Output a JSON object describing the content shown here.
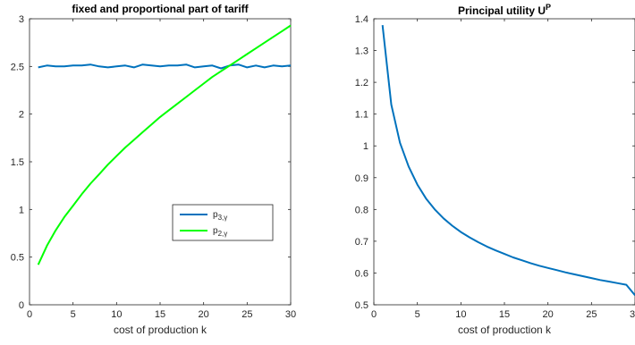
{
  "chart_data": [
    {
      "type": "line",
      "title": "fixed and proportional part of tariff",
      "xlabel": "cost of production k",
      "ylabel": "",
      "xlim": [
        0,
        30
      ],
      "ylim": [
        0,
        3
      ],
      "xticks": [
        "0",
        "5",
        "10",
        "15",
        "20",
        "25",
        "30"
      ],
      "yticks": [
        "0",
        "0.5",
        "1",
        "1.5",
        "2",
        "2.5",
        "3"
      ],
      "legend": {
        "position": "lower-right"
      },
      "series": [
        {
          "name": "p3,γ",
          "label_main": "p",
          "label_sub": "3,γ",
          "color": "#0072bd",
          "x": [
            1,
            2,
            3,
            4,
            5,
            6,
            7,
            8,
            9,
            10,
            11,
            12,
            13,
            14,
            15,
            16,
            17,
            18,
            19,
            20,
            21,
            22,
            23,
            24,
            25,
            26,
            27,
            28,
            29,
            30
          ],
          "y": [
            2.49,
            2.51,
            2.5,
            2.5,
            2.51,
            2.51,
            2.52,
            2.5,
            2.49,
            2.5,
            2.51,
            2.49,
            2.52,
            2.51,
            2.5,
            2.51,
            2.51,
            2.52,
            2.49,
            2.5,
            2.51,
            2.48,
            2.51,
            2.52,
            2.49,
            2.51,
            2.49,
            2.51,
            2.5,
            2.51
          ]
        },
        {
          "name": "p2,γ",
          "label_main": "p",
          "label_sub": "2,γ",
          "color": "#00ff00",
          "x": [
            1,
            2,
            3,
            4,
            5,
            6,
            7,
            8,
            9,
            10,
            11,
            12,
            13,
            14,
            15,
            16,
            17,
            18,
            19,
            20,
            21,
            22,
            23,
            24,
            25,
            26,
            27,
            28,
            29,
            30
          ],
          "y": [
            0.42,
            0.62,
            0.78,
            0.92,
            1.04,
            1.16,
            1.27,
            1.37,
            1.47,
            1.56,
            1.65,
            1.73,
            1.81,
            1.89,
            1.97,
            2.04,
            2.11,
            2.18,
            2.25,
            2.32,
            2.39,
            2.45,
            2.51,
            2.57,
            2.63,
            2.69,
            2.75,
            2.81,
            2.87,
            2.93
          ]
        }
      ]
    },
    {
      "type": "line",
      "title_main": "Principal utility U",
      "title_sup": "P",
      "xlabel": "cost of production k",
      "ylabel": "",
      "xlim": [
        0,
        30
      ],
      "ylim": [
        0.5,
        1.4
      ],
      "xticks": [
        "0",
        "5",
        "10",
        "15",
        "20",
        "25",
        "30"
      ],
      "yticks": [
        "0.5",
        "0.6",
        "0.7",
        "0.8",
        "0.9",
        "1",
        "1.1",
        "1.2",
        "1.3",
        "1.4"
      ],
      "series": [
        {
          "color": "#0072bd",
          "x": [
            1,
            2,
            3,
            4,
            5,
            6,
            7,
            8,
            9,
            10,
            11,
            12,
            13,
            14,
            15,
            16,
            17,
            18,
            19,
            20,
            21,
            22,
            23,
            24,
            25,
            26,
            27,
            28,
            29,
            30
          ],
          "y": [
            1.38,
            1.13,
            1.01,
            0.935,
            0.878,
            0.834,
            0.8,
            0.772,
            0.749,
            0.729,
            0.712,
            0.697,
            0.683,
            0.671,
            0.66,
            0.649,
            0.64,
            0.631,
            0.623,
            0.616,
            0.609,
            0.602,
            0.596,
            0.59,
            0.584,
            0.578,
            0.573,
            0.568,
            0.563,
            0.53
          ]
        }
      ]
    }
  ]
}
